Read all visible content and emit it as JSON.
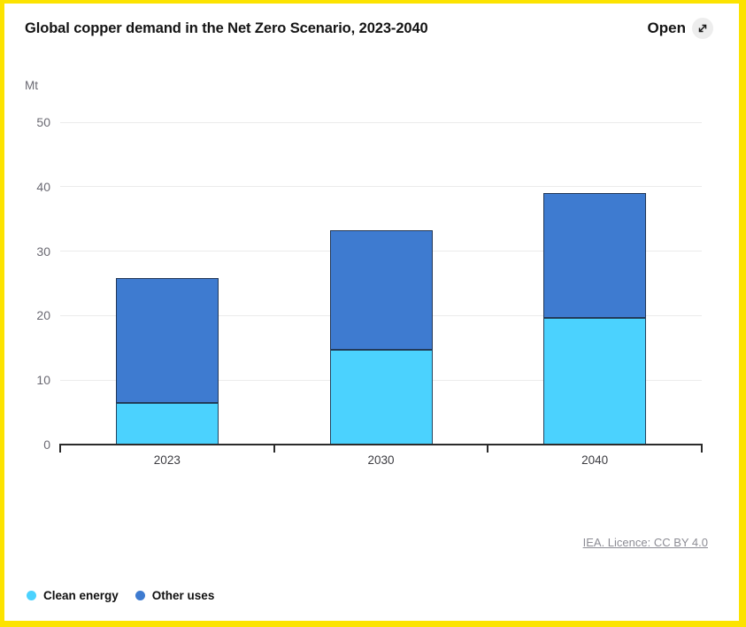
{
  "header": {
    "title": "Global copper demand in the Net Zero Scenario, 2023-2040",
    "open_label": "Open"
  },
  "chart_data": {
    "type": "bar",
    "stacked": true,
    "title": "Global copper demand in the Net Zero Scenario, 2023-2040",
    "ylabel": "Mt",
    "xlabel": "",
    "ylim": [
      0,
      50
    ],
    "yticks": [
      0,
      10,
      20,
      30,
      40,
      50
    ],
    "grid": true,
    "legend_position": "bottom-left",
    "categories": [
      "2023",
      "2030",
      "2040"
    ],
    "series": [
      {
        "name": "Clean energy",
        "color": "#4BD2FE",
        "values": [
          6.4,
          14.7,
          19.7
        ]
      },
      {
        "name": "Other uses",
        "color": "#3E7BD0",
        "values": [
          19.4,
          18.5,
          19.3
        ]
      }
    ],
    "totals": [
      25.8,
      33.2,
      39.0
    ]
  },
  "footer": {
    "licence_label": "IEA. Licence: CC BY 4.0"
  },
  "colors": {
    "clean_energy": "#4BD2FE",
    "other_uses": "#3E7BD0",
    "highlight_border": "#FCE300",
    "axis": "#2b2b2b",
    "gridline": "#ebebeb"
  }
}
